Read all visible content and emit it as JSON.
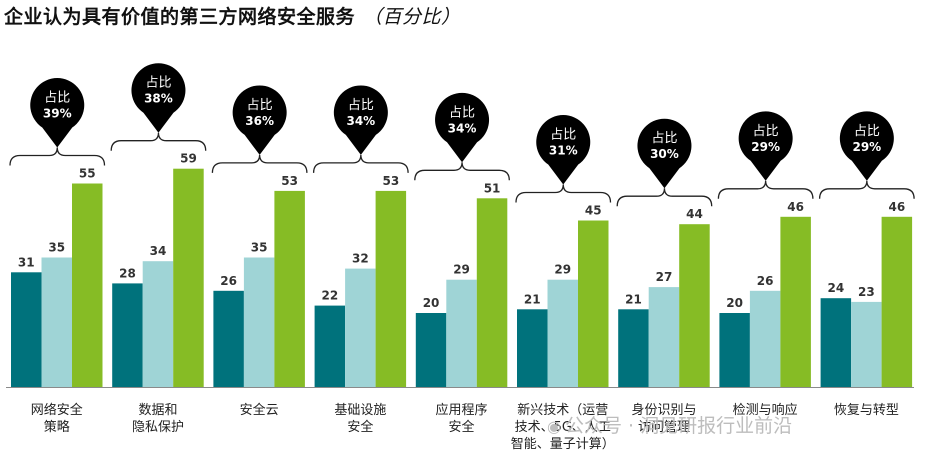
{
  "chart_data": {
    "type": "bar",
    "title": "企业认为具有价值的第三方网络安全服务",
    "subtitle": "（百分比）",
    "pin_label": "占比",
    "categories": [
      [
        "网络安全",
        "策略"
      ],
      [
        "数据和",
        "隐私保护"
      ],
      [
        "安全云"
      ],
      [
        "基础设施",
        "安全"
      ],
      [
        "应用程序",
        "安全"
      ],
      [
        "新兴技术（运营",
        "技术、5G、人工",
        "智能、量子计算）"
      ],
      [
        "身份识别与",
        "访问管理"
      ],
      [
        "检测与响应"
      ],
      [
        "恢复与转型"
      ]
    ],
    "share_percent": [
      "39%",
      "38%",
      "36%",
      "34%",
      "34%",
      "31%",
      "30%",
      "29%",
      "29%"
    ],
    "series": [
      {
        "name": "series-1",
        "color": "#00727c",
        "values": [
          31,
          28,
          26,
          22,
          20,
          21,
          21,
          20,
          24
        ]
      },
      {
        "name": "series-2",
        "color": "#9fd4d6",
        "values": [
          35,
          34,
          35,
          32,
          29,
          29,
          27,
          26,
          23
        ]
      },
      {
        "name": "series-3",
        "color": "#86bc25",
        "values": [
          55,
          59,
          53,
          53,
          51,
          45,
          44,
          46,
          46
        ]
      }
    ],
    "ylim": [
      0,
      60
    ],
    "legend": "none",
    "grid": false
  },
  "watermark": {
    "icon": "wechat-icon",
    "text": "公众号 · 洞见研报行业前沿"
  }
}
